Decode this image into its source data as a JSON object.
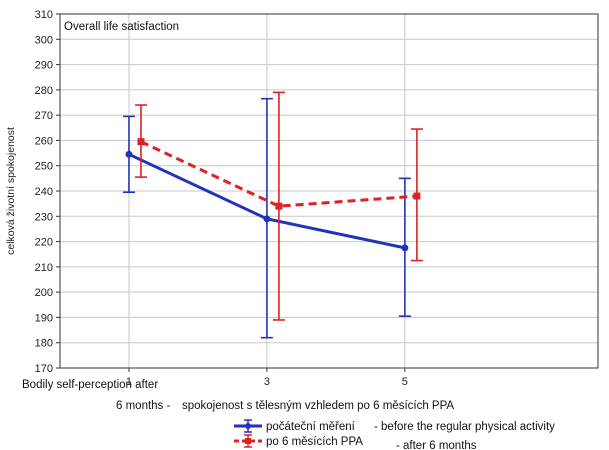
{
  "colors": {
    "series_1": "#2233bb",
    "series_2": "#dd2222",
    "grid": "#c8c8c8",
    "frame": "#333333"
  },
  "chart_data": {
    "type": "line",
    "title": "Overall life satisfaction",
    "ylabel": "celková životní spokojenost",
    "x_note_line1": "Bodily self-perception after",
    "x_note_line2": "6 months -",
    "xlabel": "spokojenost s tělesným vzhledem po 6 měsících PPA",
    "x": [
      1,
      3,
      5
    ],
    "ylim": [
      170,
      310
    ],
    "yticks": [
      170,
      180,
      190,
      200,
      210,
      220,
      230,
      240,
      250,
      260,
      270,
      280,
      290,
      300,
      310
    ],
    "grid": true,
    "series": [
      {
        "name": "počáteční měření",
        "legend_suffix": "- before the regular physical activity",
        "style": "solid",
        "values": [
          254.5,
          229,
          217.5
        ],
        "err_low": [
          239.5,
          182,
          190.5
        ],
        "err_high": [
          269.5,
          276.5,
          245
        ]
      },
      {
        "name": "po 6 měsících PPA",
        "legend_suffix": "- after 6 months",
        "style": "dashed",
        "values": [
          259.5,
          234,
          238
        ],
        "err_low": [
          245.5,
          189,
          212.5
        ],
        "err_high": [
          274,
          279,
          264.5
        ]
      }
    ]
  }
}
